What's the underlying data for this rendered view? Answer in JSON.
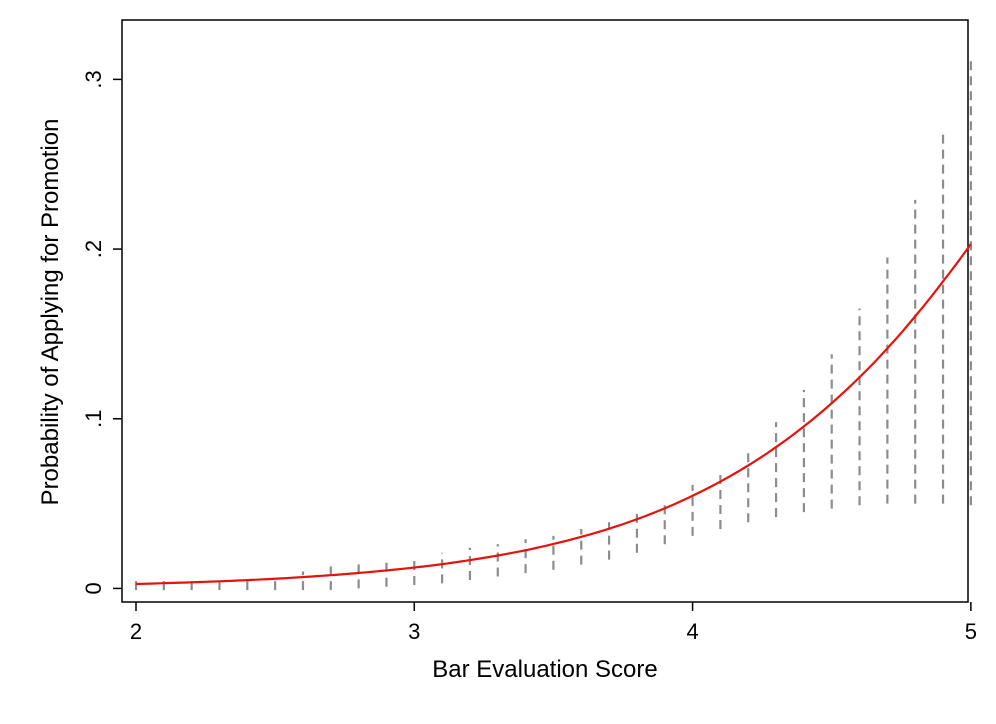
{
  "chart_data": {
    "type": "line",
    "title": "",
    "xlabel": "Bar Evaluation Score",
    "ylabel": "Probability of Applying for Promotion",
    "xlim": [
      2,
      5.04
    ],
    "ylim": [
      -0.008,
      0.335
    ],
    "x_ticks": [
      2,
      3,
      4,
      5
    ],
    "x_tick_labels": [
      "2",
      "3",
      "4",
      "5"
    ],
    "y_ticks": [
      0,
      0.1,
      0.2,
      0.3
    ],
    "y_tick_labels": [
      "0",
      ".1",
      ".2",
      ".3"
    ],
    "grid": false,
    "legend": "none",
    "colors": {
      "line": "#e8120c",
      "ci": "#8c8c8c",
      "frame": "#000000",
      "background": "#ffffff"
    },
    "series": [
      {
        "style": "solid",
        "x": [
          2.0,
          2.1,
          2.2,
          2.3,
          2.4,
          2.5,
          2.6,
          2.7,
          2.8,
          2.9,
          3.0,
          3.1,
          3.2,
          3.3,
          3.4,
          3.5,
          3.6,
          3.7,
          3.8,
          3.9,
          4.0,
          4.1,
          4.2,
          4.3,
          4.4,
          4.5,
          4.6,
          4.7,
          4.8,
          4.9,
          5.0
        ],
        "y": [
          0.0026,
          0.0031,
          0.0036,
          0.0042,
          0.0049,
          0.0057,
          0.0067,
          0.0078,
          0.0091,
          0.0106,
          0.0123,
          0.0143,
          0.0167,
          0.0194,
          0.0225,
          0.0262,
          0.0304,
          0.0352,
          0.0408,
          0.0472,
          0.0546,
          0.063,
          0.0725,
          0.0833,
          0.0955,
          0.1092,
          0.1245,
          0.1415,
          0.1604,
          0.181,
          0.203
        ]
      }
    ],
    "confidence_interval": {
      "style": "dashed",
      "x": [
        2.0,
        2.1,
        2.2,
        2.3,
        2.4,
        2.5,
        2.6,
        2.7,
        2.8,
        2.9,
        3.0,
        3.1,
        3.2,
        3.3,
        3.4,
        3.5,
        3.6,
        3.7,
        3.8,
        3.9,
        4.0,
        4.1,
        4.2,
        4.3,
        4.4,
        4.5,
        4.6,
        4.7,
        4.8,
        4.9,
        5.0
      ],
      "lower": [
        -0.001,
        -0.001,
        -0.001,
        -0.001,
        -0.001,
        -0.001,
        -0.001,
        -0.001,
        0.0,
        0.001,
        0.002,
        0.003,
        0.005,
        0.007,
        0.009,
        0.011,
        0.014,
        0.017,
        0.021,
        0.026,
        0.031,
        0.035,
        0.039,
        0.042,
        0.045,
        0.047,
        0.049,
        0.05,
        0.05,
        0.05,
        0.049
      ],
      "upper": [
        0.006,
        0.007,
        0.007,
        0.007,
        0.007,
        0.007,
        0.01,
        0.013,
        0.015,
        0.017,
        0.019,
        0.021,
        0.024,
        0.026,
        0.029,
        0.031,
        0.035,
        0.039,
        0.044,
        0.052,
        0.061,
        0.069,
        0.082,
        0.098,
        0.117,
        0.138,
        0.165,
        0.195,
        0.229,
        0.269,
        0.312
      ]
    }
  }
}
